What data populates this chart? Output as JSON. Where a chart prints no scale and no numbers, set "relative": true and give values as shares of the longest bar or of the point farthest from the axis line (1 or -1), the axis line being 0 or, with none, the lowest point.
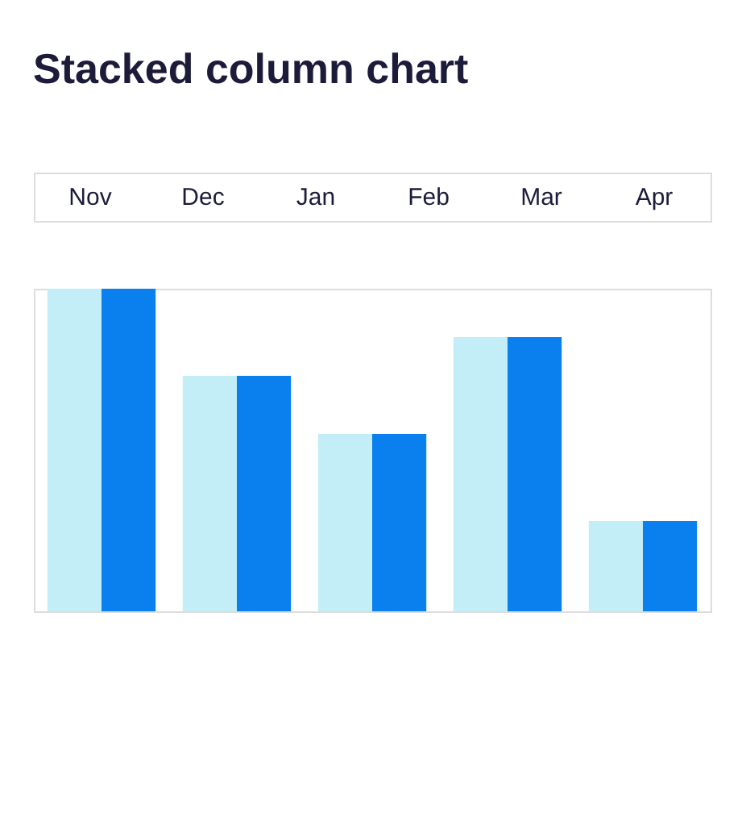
{
  "chart_data": {
    "type": "bar",
    "title": "Stacked column chart",
    "annotations": [
      "Nov",
      "Dec",
      "Jan",
      "Feb",
      "Mar",
      "Apr"
    ],
    "categories": [
      null,
      null,
      null,
      null,
      null
    ],
    "relative": true,
    "series": [
      {
        "color": "#c3eef7",
        "values": [
          1,
          0.73,
          0.55,
          0.85,
          0.28
        ]
      },
      {
        "color": "#0a80ef",
        "values": [
          1,
          0.73,
          0.55,
          0.85,
          0.28
        ]
      }
    ]
  }
}
